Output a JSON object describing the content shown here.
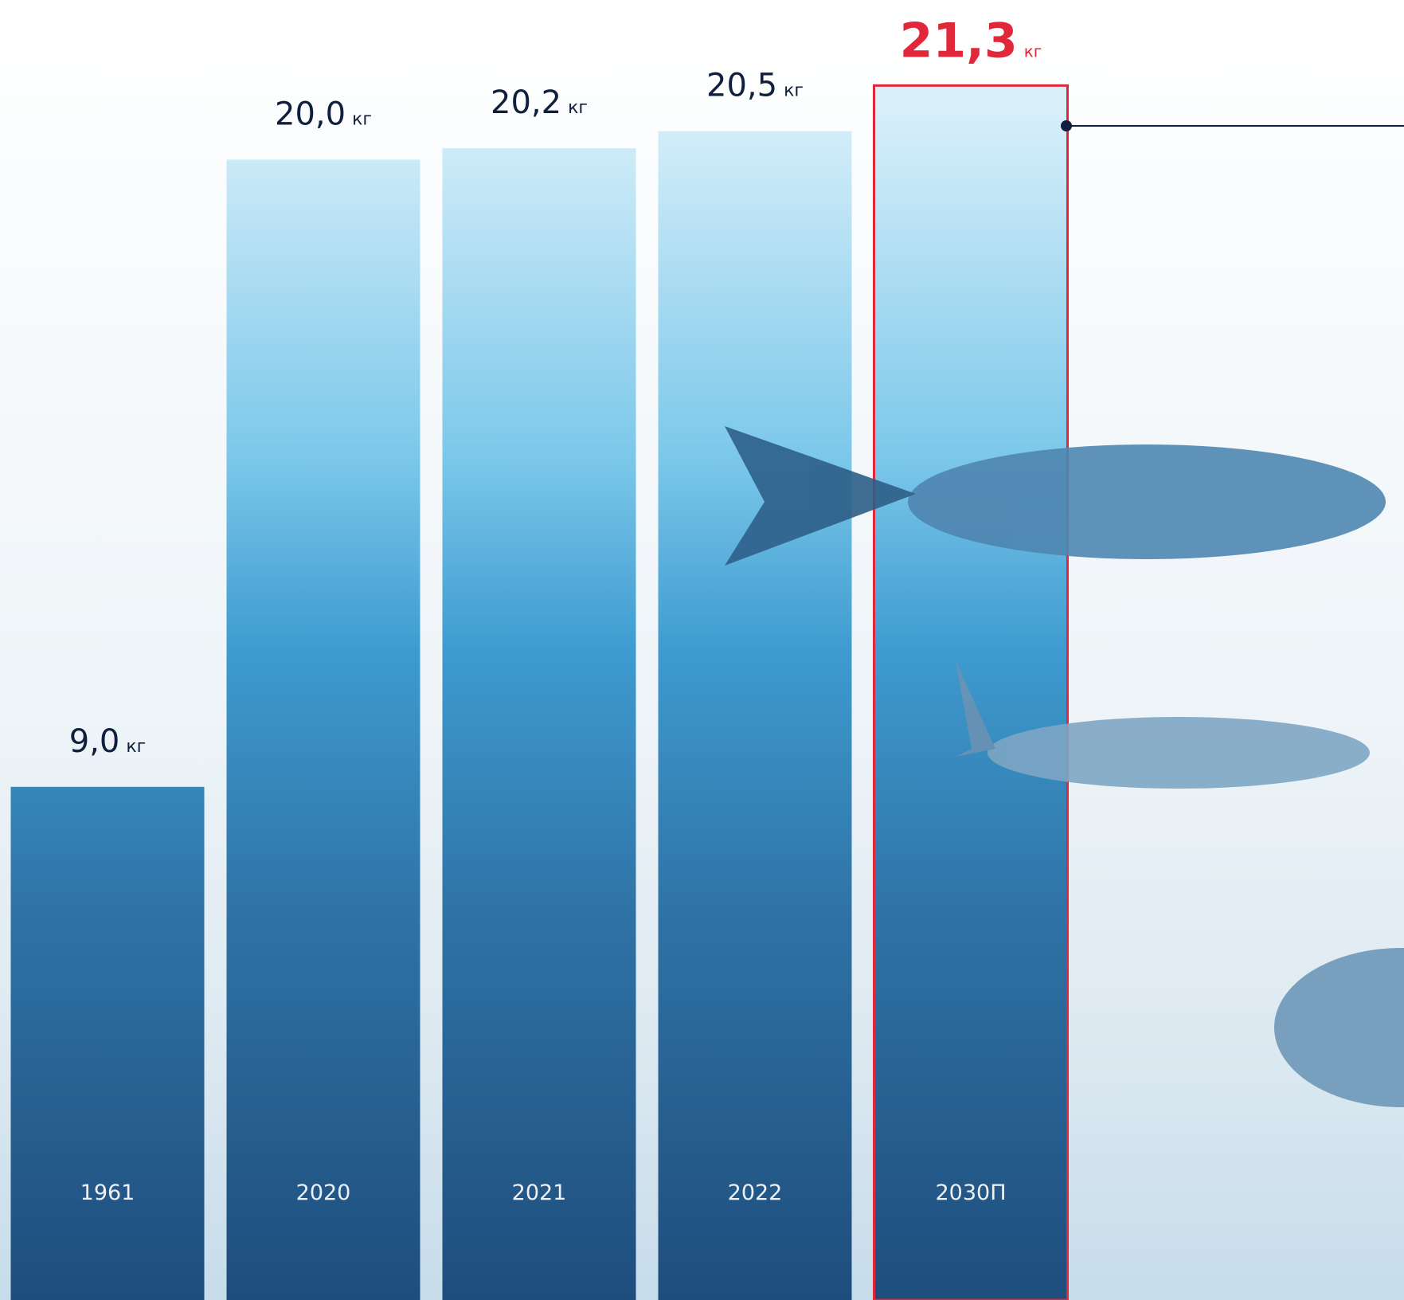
{
  "chart_data": {
    "type": "bar",
    "categories": [
      "1961",
      "2020",
      "2021",
      "2022",
      "2030П"
    ],
    "values": [
      9.0,
      20.0,
      20.2,
      20.5,
      21.3
    ],
    "value_labels": [
      "9,0",
      "20,0",
      "20,2",
      "20,5",
      "21,3"
    ],
    "unit": "кг",
    "ylim": [
      0,
      22.8
    ],
    "highlight": {
      "index": 4,
      "color": "#e0283a"
    }
  }
}
